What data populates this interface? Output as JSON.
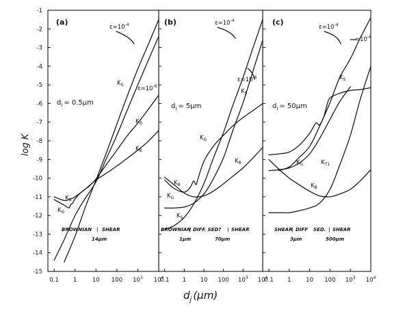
{
  "colors": {
    "ink": "#111111",
    "paper": "#ffffff"
  },
  "y_axis": {
    "label": "log K",
    "ticks": [
      "-1",
      "-2",
      "-3",
      "-4",
      "-5",
      "-6",
      "-7",
      "-8",
      "-9",
      "-10",
      "-11",
      "-12",
      "-13",
      "-14",
      "-15"
    ],
    "ylim": [
      -15,
      -1
    ]
  },
  "x_axis": {
    "label": "d_j (μm)",
    "label_main": "d",
    "label_sub": "j",
    "label_unit": "(μm)"
  },
  "chart_data": [
    {
      "type": "line",
      "panel": "(a)",
      "note": "d_i = 0.5 μm",
      "xlabel": "d_j (μm)",
      "ylabel": "log K",
      "xscale": "log",
      "xlim": [
        0.05,
        10000
      ],
      "ylim": [
        -15,
        -1
      ],
      "x_tick_labels": [
        "0.1",
        "1",
        "10",
        "100",
        "10^3",
        "10^4"
      ],
      "annotations": [
        "ε = 10^-4",
        "ε = 10^-6"
      ],
      "regime_labels": [
        "BROWNIAN",
        "SHEAR",
        "14μm"
      ],
      "series": [
        {
          "name": "K_B",
          "x": [
            0.1,
            0.3,
            0.5,
            1,
            3,
            10,
            30,
            100,
            300,
            1000,
            3000,
            10000
          ],
          "y": [
            -11.0,
            -11.2,
            -11.15,
            -11.0,
            -10.6,
            -10.1,
            -9.75,
            -9.35,
            -8.95,
            -8.5,
            -8.05,
            -7.45
          ]
        },
        {
          "name": "K_G",
          "x": [
            0.1,
            0.3,
            0.5,
            0.6,
            0.8,
            1,
            2,
            5,
            10,
            30,
            100,
            300,
            1000,
            3000,
            10000
          ],
          "y": [
            -11.15,
            -11.45,
            -11.6,
            -11.45,
            -11.3,
            -11.1,
            -10.75,
            -10.4,
            -10.05,
            -9.3,
            -8.5,
            -7.75,
            -7.05,
            -6.35,
            -5.55
          ]
        },
        {
          "name": "K_S (ε = 10^-4)",
          "x": [
            0.3,
            1,
            3,
            10,
            30,
            100,
            300,
            1000,
            3000,
            10000
          ],
          "y": [
            -14.5,
            -13.1,
            -11.6,
            -10.1,
            -8.7,
            -7.1,
            -5.65,
            -4.15,
            -2.9,
            -1.5
          ]
        },
        {
          "name": "K_S (ε = 10^-6)",
          "x": [
            0.1,
            0.3,
            1,
            3,
            10,
            30,
            100,
            300,
            1000,
            3000,
            10000
          ],
          "y": [
            -14.4,
            -13.3,
            -12.0,
            -11.1,
            -10.2,
            -9.0,
            -7.7,
            -6.4,
            -5.0,
            -3.75,
            -2.4
          ]
        }
      ]
    },
    {
      "type": "line",
      "panel": "(b)",
      "note": "d_i = 5 μm",
      "xlabel": "d_j (μm)",
      "ylabel": "log K",
      "xscale": "log",
      "xlim": [
        0.05,
        10000
      ],
      "ylim": [
        -15,
        -1
      ],
      "x_tick_labels": [
        "0.1",
        "1",
        "10",
        "100",
        "10^3",
        "10^4"
      ],
      "annotations": [
        "ε = 10^-4",
        "ε = 10^-6"
      ],
      "regime_labels": [
        "BROWNIAN",
        "DIFF. SED?",
        "SHEAR",
        "1μm",
        "70μm"
      ],
      "series": [
        {
          "name": "K_B",
          "x": [
            0.1,
            0.3,
            1,
            3,
            10,
            30,
            100,
            300,
            1000,
            3000,
            10000
          ],
          "y": [
            -9.95,
            -10.35,
            -10.8,
            -11.0,
            -10.95,
            -10.7,
            -10.3,
            -9.9,
            -9.45,
            -8.95,
            -8.35
          ]
        },
        {
          "name": "K_G",
          "x": [
            0.1,
            0.3,
            1,
            2,
            3,
            4,
            5,
            10,
            30,
            100,
            300,
            1000,
            3000,
            10000
          ],
          "y": [
            -10.1,
            -10.55,
            -10.75,
            -10.5,
            -10.15,
            -10.35,
            -10.05,
            -9.1,
            -8.3,
            -7.7,
            -7.2,
            -6.75,
            -6.4,
            -6.0
          ]
        },
        {
          "name": "K_S (ε = 10^-4)",
          "x": [
            0.1,
            0.3,
            1,
            3,
            10,
            30,
            100,
            300,
            1000,
            3000,
            10000
          ],
          "y": [
            -12.75,
            -12.55,
            -12.1,
            -11.4,
            -10.3,
            -8.95,
            -7.55,
            -6.1,
            -4.6,
            -3.1,
            -1.5
          ]
        },
        {
          "name": "K_S (ε = 10^-6)",
          "x": [
            0.1,
            0.3,
            1,
            3,
            10,
            30,
            100,
            300,
            1000,
            3000,
            10000
          ],
          "y": [
            -11.6,
            -11.6,
            -11.55,
            -11.35,
            -10.85,
            -10.05,
            -8.9,
            -7.45,
            -5.95,
            -4.35,
            -2.6
          ]
        }
      ]
    },
    {
      "type": "line",
      "panel": "(c)",
      "note": "d_i = 50 μm",
      "xlabel": "d_j (μm)",
      "ylabel": "log K",
      "xscale": "log",
      "xlim": [
        0.05,
        10000
      ],
      "ylim": [
        -15,
        -1
      ],
      "x_tick_labels": [
        "0.1",
        "1",
        "10",
        "100",
        "10^3",
        "10^4"
      ],
      "annotations": [
        "ε = 10^-4",
        "ε = 10^-6"
      ],
      "regime_labels": [
        "SHEAR",
        "DIFF",
        "SED.",
        "SHEAR",
        "3μm",
        "500μm"
      ],
      "series": [
        {
          "name": "K_B",
          "x": [
            0.1,
            0.3,
            1,
            3,
            10,
            30,
            100,
            300,
            1000,
            3000,
            10000
          ],
          "y": [
            -9.0,
            -9.5,
            -10.0,
            -10.35,
            -10.7,
            -10.95,
            -11.0,
            -10.85,
            -10.6,
            -10.15,
            -9.55
          ]
        },
        {
          "name": "K_G",
          "x": [
            0.1,
            0.3,
            1,
            3,
            10,
            20,
            30,
            50,
            70,
            100,
            300,
            1000,
            3000,
            10000
          ],
          "y": [
            -8.75,
            -8.7,
            -8.6,
            -8.25,
            -7.6,
            -7.05,
            -7.15,
            -6.7,
            -6.1,
            -5.7,
            -5.45,
            -5.3,
            -5.25,
            -5.15
          ]
        },
        {
          "name": "K_T1",
          "x": [
            0.1,
            0.3,
            1,
            3,
            10,
            30,
            100,
            300,
            1000
          ],
          "y": [
            -9.6,
            -9.55,
            -9.45,
            -9.2,
            -8.7,
            -7.9,
            -6.85,
            -5.9,
            -5.1
          ]
        },
        {
          "name": "K_S (ε = 10^-4)",
          "x": [
            0.3,
            1,
            3,
            10,
            30,
            100,
            300,
            1000,
            3000,
            10000
          ],
          "y": [
            -9.6,
            -9.4,
            -8.9,
            -8.3,
            -7.25,
            -5.95,
            -4.6,
            -3.6,
            -2.5,
            -1.4
          ]
        },
        {
          "name": "K_S (ε = 10^-6)",
          "x": [
            0.1,
            0.3,
            1,
            3,
            10,
            30,
            100,
            300,
            1000,
            3000,
            10000
          ],
          "y": [
            -11.85,
            -11.85,
            -11.85,
            -11.75,
            -11.6,
            -11.35,
            -10.6,
            -9.3,
            -7.7,
            -5.8,
            -4.0
          ]
        }
      ]
    }
  ],
  "panel_text": [
    {
      "title": "(a)",
      "d_i": "d",
      "d_sub": "i",
      "d_val": "= 0.5μm",
      "eps1": "ε=10",
      "eps1_exp": "-4",
      "eps2": "ε=10",
      "eps2_exp": "-6",
      "curve_labels": [
        {
          "text": "K",
          "sub": "S"
        },
        {
          "text": "K",
          "sub": "G"
        },
        {
          "text": "K",
          "sub": "B"
        },
        {
          "text": "K",
          "sub": "B"
        },
        {
          "text": "K",
          "sub": "G"
        }
      ],
      "regime": [
        "BROWNIAN",
        "|",
        "SHEAR"
      ],
      "regime_size": [
        "14μm"
      ]
    },
    {
      "title": "(b)",
      "d_i": "d",
      "d_sub": "i",
      "d_val": "= 5μm",
      "eps1": "ε=10",
      "eps1_exp": "-4",
      "eps2": "ε=10",
      "eps2_exp": "-6",
      "curve_labels": [
        {
          "text": "K",
          "sub": "S"
        },
        {
          "text": "K",
          "sub": "G"
        },
        {
          "text": "K",
          "sub": "B"
        },
        {
          "text": "K",
          "sub": "B"
        },
        {
          "text": "K",
          "sub": "G"
        },
        {
          "text": "K",
          "sub": "S"
        }
      ],
      "regime": [
        "BROWNIAN",
        "|",
        "DIFF. SED?",
        "|",
        "SHEAR"
      ],
      "regime_size": [
        "1μm",
        "70μm"
      ]
    },
    {
      "title": "(c)",
      "d_i": "d",
      "d_sub": "i",
      "d_val": "= 50μm",
      "eps1": "ε=10",
      "eps1_exp": "-4",
      "eps2": "=10",
      "eps2_exp": "-6",
      "curve_labels": [
        {
          "text": "K",
          "sub": "S"
        },
        {
          "text": "K",
          "sub": "G"
        },
        {
          "text": "K",
          "sub": "T1"
        },
        {
          "text": "K",
          "sub": "B"
        }
      ],
      "regime": [
        "SHEAR",
        "|",
        "DIFF",
        "SED.",
        "|",
        "SHEAR"
      ],
      "regime_size": [
        "3μm",
        "500μm"
      ]
    }
  ],
  "x_tick_text": [
    "0.1",
    "1",
    "10",
    "100",
    "10",
    "10"
  ],
  "x_tick_exp": [
    "",
    "",
    "",
    "",
    "3",
    "4"
  ]
}
